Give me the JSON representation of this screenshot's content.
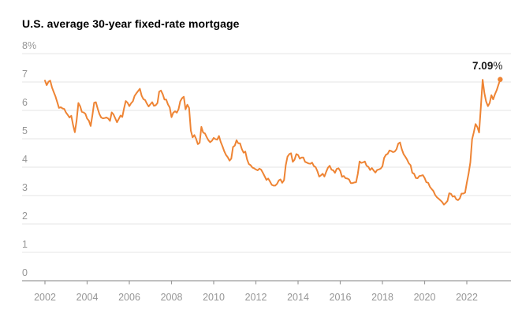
{
  "chart_data": {
    "type": "line",
    "title": "U.S. average 30-year fixed-rate mortgage",
    "xlabel": "",
    "ylabel": "",
    "ylim": [
      0,
      8
    ],
    "x_start_year": 2002,
    "x_end": "2023-08",
    "grid": "horizontal-only",
    "legend_position": "none",
    "y_ticks": [
      {
        "value": 0,
        "label": "0"
      },
      {
        "value": 1,
        "label": "1"
      },
      {
        "value": 2,
        "label": "2"
      },
      {
        "value": 3,
        "label": "3"
      },
      {
        "value": 4,
        "label": "4"
      },
      {
        "value": 5,
        "label": "5"
      },
      {
        "value": 6,
        "label": "6"
      },
      {
        "value": 7,
        "label": "7"
      },
      {
        "value": 8,
        "label": "8%"
      }
    ],
    "x_ticks": [
      {
        "year": 2002,
        "label": "2002"
      },
      {
        "year": 2004,
        "label": "2004"
      },
      {
        "year": 2006,
        "label": "2006"
      },
      {
        "year": 2008,
        "label": "2008"
      },
      {
        "year": 2010,
        "label": "2010"
      },
      {
        "year": 2012,
        "label": "2012"
      },
      {
        "year": 2014,
        "label": "2014"
      },
      {
        "year": 2016,
        "label": "2016"
      },
      {
        "year": 2018,
        "label": "2018"
      },
      {
        "year": 2020,
        "label": "2020"
      },
      {
        "year": 2022,
        "label": "2022"
      }
    ],
    "annotation": {
      "value_label": "7.09",
      "suffix": "%"
    },
    "colors": {
      "line": "#ee8434",
      "grid": "#e6e6e6",
      "axis": "#9b9b9b",
      "tick_label": "#969696",
      "title": "#1a1a1a",
      "annotation": "#1a1a1a"
    },
    "series": [
      {
        "name": "U.S. average 30-year fixed-rate mortgage",
        "cadence": "monthly",
        "start": "2002-01",
        "unit": "%",
        "values": [
          7.05,
          6.89,
          7.01,
          7.05,
          6.81,
          6.65,
          6.49,
          6.29,
          6.09,
          6.11,
          6.07,
          6.05,
          5.92,
          5.84,
          5.75,
          5.81,
          5.48,
          5.23,
          5.63,
          6.26,
          6.15,
          5.95,
          5.93,
          5.88,
          5.71,
          5.64,
          5.45,
          5.83,
          6.27,
          6.29,
          6.06,
          5.87,
          5.75,
          5.72,
          5.73,
          5.75,
          5.71,
          5.63,
          5.93,
          5.86,
          5.72,
          5.58,
          5.7,
          5.82,
          5.77,
          6.07,
          6.33,
          6.27,
          6.15,
          6.25,
          6.32,
          6.51,
          6.6,
          6.68,
          6.76,
          6.52,
          6.4,
          6.36,
          6.24,
          6.14,
          6.22,
          6.29,
          6.16,
          6.18,
          6.26,
          6.66,
          6.7,
          6.57,
          6.38,
          6.38,
          6.21,
          6.1,
          5.76,
          5.92,
          5.97,
          5.92,
          6.04,
          6.32,
          6.43,
          6.48,
          6.04,
          6.2,
          6.09,
          5.29,
          5.05,
          5.13,
          5.0,
          4.81,
          4.86,
          5.42,
          5.22,
          5.19,
          5.06,
          4.95,
          4.88,
          4.93,
          5.03,
          4.99,
          4.97,
          5.1,
          4.89,
          4.74,
          4.56,
          4.43,
          4.35,
          4.23,
          4.3,
          4.71,
          4.76,
          4.95,
          4.84,
          4.84,
          4.64,
          4.51,
          4.55,
          4.27,
          4.11,
          4.07,
          3.99,
          3.96,
          3.92,
          3.89,
          3.95,
          3.91,
          3.8,
          3.68,
          3.55,
          3.6,
          3.5,
          3.38,
          3.35,
          3.35,
          3.41,
          3.53,
          3.57,
          3.45,
          3.54,
          4.07,
          4.37,
          4.46,
          4.49,
          4.19,
          4.26,
          4.46,
          4.43,
          4.3,
          4.34,
          4.34,
          4.19,
          4.16,
          4.13,
          4.12,
          4.16,
          4.04,
          4.0,
          3.86,
          3.67,
          3.71,
          3.77,
          3.67,
          3.84,
          3.98,
          4.05,
          3.91,
          3.89,
          3.8,
          3.94,
          3.96,
          3.87,
          3.66,
          3.69,
          3.61,
          3.6,
          3.57,
          3.44,
          3.44,
          3.46,
          3.47,
          3.77,
          4.2,
          4.15,
          4.17,
          4.2,
          4.05,
          4.01,
          3.9,
          3.97,
          3.88,
          3.81,
          3.9,
          3.92,
          3.95,
          4.03,
          4.33,
          4.44,
          4.47,
          4.59,
          4.57,
          4.53,
          4.55,
          4.63,
          4.83,
          4.87,
          4.64,
          4.46,
          4.37,
          4.27,
          4.14,
          4.07,
          3.8,
          3.77,
          3.62,
          3.61,
          3.69,
          3.7,
          3.72,
          3.62,
          3.47,
          3.45,
          3.31,
          3.23,
          3.16,
          3.02,
          2.94,
          2.89,
          2.83,
          2.77,
          2.68,
          2.74,
          2.81,
          3.08,
          3.06,
          2.96,
          2.98,
          2.87,
          2.84,
          2.9,
          3.07,
          3.07,
          3.1,
          3.45,
          3.76,
          4.17,
          4.98,
          5.23,
          5.52,
          5.41,
          5.22,
          6.11,
          7.08,
          6.61,
          6.31,
          6.15,
          6.26,
          6.54,
          6.39,
          6.57,
          6.71,
          6.9,
          7.09
        ]
      }
    ]
  }
}
